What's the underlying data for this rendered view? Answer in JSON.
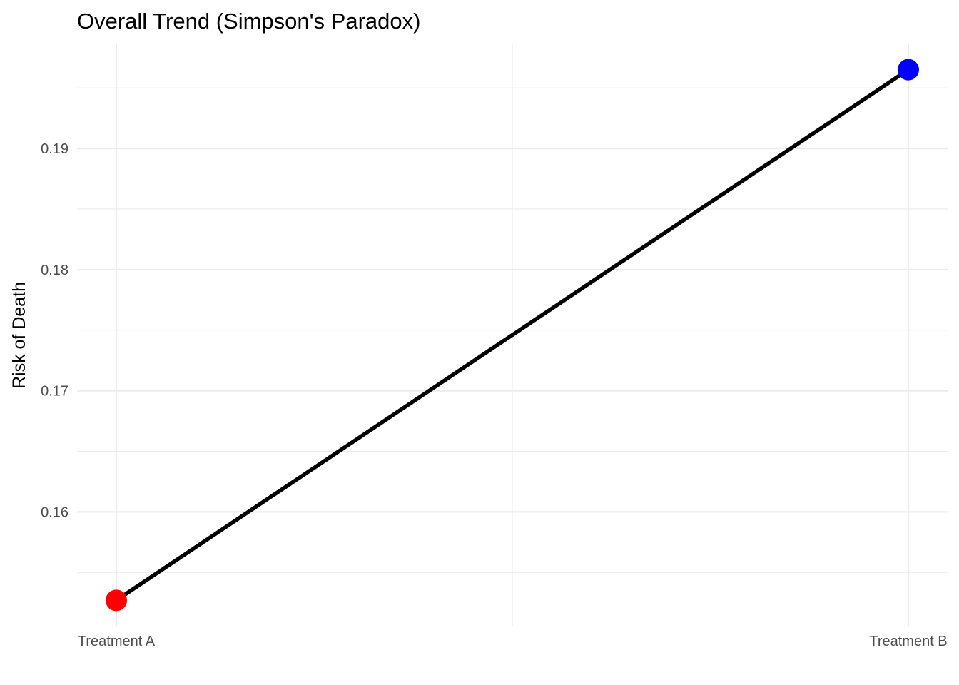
{
  "chart_data": {
    "type": "line",
    "title": "Overall Trend (Simpson's Paradox)",
    "xlabel": "",
    "ylabel": "Risk of Death",
    "categories": [
      "Treatment A",
      "Treatment B"
    ],
    "series": [
      {
        "values": [
          0.1527,
          0.1965
        ],
        "line_color": "#000000",
        "point_colors": [
          "#ff0000",
          "#0000ff"
        ]
      }
    ],
    "yticks": [
      0.16,
      0.17,
      0.18,
      0.19
    ],
    "ytick_labels": [
      "0.16",
      "0.17",
      "0.18",
      "0.19"
    ],
    "ylim": [
      0.1506,
      0.1986
    ],
    "grid": true,
    "legend": "none"
  }
}
